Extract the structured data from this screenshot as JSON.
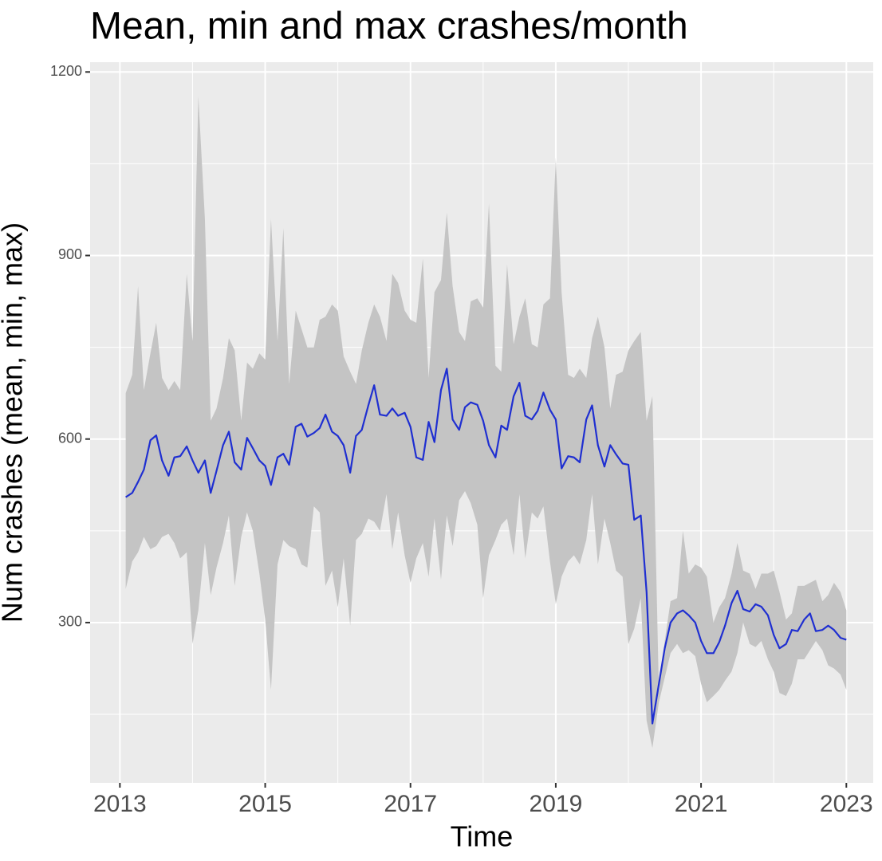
{
  "chart_data": {
    "type": "line",
    "title": "Mean, min and max crashes/month",
    "xlabel": "Time",
    "ylabel": "Num crashes (mean, min, max)",
    "xlim": [
      2012.59,
      2023.37
    ],
    "xticks": [
      2013,
      2015,
      2017,
      2019,
      2021,
      2023
    ],
    "xminor_ticks": [
      2014,
      2016,
      2018,
      2020,
      2022
    ],
    "ylim": [
      38,
      1216
    ],
    "yticks": [
      300,
      600,
      900,
      1200
    ],
    "yminor_ticks": [
      150,
      450,
      750,
      1050
    ],
    "grid": true,
    "x": [
      2013.08,
      2013.17,
      2013.25,
      2013.33,
      2013.42,
      2013.5,
      2013.58,
      2013.67,
      2013.75,
      2013.83,
      2013.92,
      2014.0,
      2014.08,
      2014.17,
      2014.25,
      2014.33,
      2014.42,
      2014.5,
      2014.58,
      2014.67,
      2014.75,
      2014.83,
      2014.92,
      2015.0,
      2015.08,
      2015.17,
      2015.25,
      2015.33,
      2015.42,
      2015.5,
      2015.58,
      2015.67,
      2015.75,
      2015.83,
      2015.92,
      2016.0,
      2016.08,
      2016.17,
      2016.25,
      2016.33,
      2016.42,
      2016.5,
      2016.58,
      2016.67,
      2016.75,
      2016.83,
      2016.92,
      2017.0,
      2017.08,
      2017.17,
      2017.25,
      2017.33,
      2017.42,
      2017.5,
      2017.58,
      2017.67,
      2017.75,
      2017.83,
      2017.92,
      2018.0,
      2018.08,
      2018.17,
      2018.25,
      2018.33,
      2018.42,
      2018.5,
      2018.58,
      2018.67,
      2018.75,
      2018.83,
      2018.92,
      2019.0,
      2019.08,
      2019.17,
      2019.25,
      2019.33,
      2019.42,
      2019.5,
      2019.58,
      2019.67,
      2019.75,
      2019.83,
      2019.92,
      2020.0,
      2020.08,
      2020.17,
      2020.25,
      2020.33,
      2020.42,
      2020.5,
      2020.58,
      2020.67,
      2020.75,
      2020.83,
      2020.92,
      2021.0,
      2021.08,
      2021.17,
      2021.25,
      2021.33,
      2021.42,
      2021.5,
      2021.58,
      2021.67,
      2021.75,
      2021.83,
      2021.92,
      2022.0,
      2022.08,
      2022.17,
      2022.25,
      2022.33,
      2022.42,
      2022.5,
      2022.58,
      2022.67,
      2022.75,
      2022.83,
      2022.92,
      2023.0
    ],
    "line": {
      "color": "#1f2fd1",
      "values": [
        505,
        512,
        530,
        550,
        598,
        606,
        565,
        540,
        570,
        572,
        588,
        565,
        545,
        565,
        512,
        548,
        590,
        612,
        562,
        550,
        602,
        585,
        565,
        556,
        525,
        570,
        576,
        558,
        620,
        625,
        604,
        610,
        618,
        640,
        612,
        605,
        590,
        545,
        605,
        615,
        655,
        688,
        640,
        638,
        650,
        638,
        643,
        620,
        570,
        566,
        628,
        595,
        680,
        715,
        632,
        615,
        652,
        660,
        656,
        630,
        590,
        570,
        622,
        615,
        670,
        692,
        638,
        632,
        646,
        676,
        648,
        632,
        552,
        572,
        570,
        562,
        632,
        655,
        590,
        555,
        590,
        575,
        560,
        558,
        468,
        475,
        350,
        135,
        200,
        258,
        300,
        315,
        320,
        312,
        300,
        270,
        250,
        250,
        268,
        295,
        332,
        352,
        322,
        318,
        330,
        326,
        312,
        280,
        258,
        265,
        288,
        286,
        305,
        315,
        286,
        288,
        295,
        288,
        275,
        272
      ]
    },
    "ribbon": {
      "color": "#c4c4c4",
      "min": [
        355,
        400,
        415,
        440,
        420,
        425,
        440,
        445,
        430,
        405,
        415,
        265,
        320,
        430,
        345,
        390,
        430,
        475,
        360,
        440,
        480,
        450,
        380,
        305,
        190,
        395,
        435,
        425,
        420,
        395,
        390,
        490,
        480,
        360,
        385,
        325,
        405,
        295,
        435,
        445,
        470,
        465,
        450,
        510,
        420,
        480,
        410,
        365,
        405,
        430,
        375,
        470,
        370,
        475,
        425,
        500,
        515,
        495,
        460,
        340,
        410,
        435,
        460,
        470,
        410,
        510,
        405,
        480,
        470,
        490,
        400,
        330,
        375,
        400,
        410,
        395,
        435,
        510,
        395,
        470,
        430,
        385,
        375,
        265,
        290,
        340,
        140,
        95,
        170,
        210,
        250,
        265,
        250,
        255,
        245,
        200,
        170,
        180,
        190,
        205,
        220,
        250,
        300,
        265,
        260,
        270,
        240,
        220,
        185,
        180,
        200,
        240,
        240,
        255,
        270,
        255,
        230,
        225,
        215,
        190
      ],
      "max": [
        675,
        705,
        850,
        680,
        740,
        790,
        700,
        680,
        695,
        680,
        870,
        760,
        1160,
        960,
        630,
        650,
        700,
        765,
        745,
        630,
        725,
        715,
        740,
        730,
        960,
        760,
        945,
        690,
        810,
        780,
        750,
        750,
        795,
        800,
        820,
        810,
        735,
        710,
        690,
        745,
        790,
        820,
        800,
        760,
        870,
        855,
        810,
        795,
        790,
        895,
        700,
        840,
        860,
        970,
        850,
        775,
        760,
        825,
        830,
        815,
        985,
        720,
        710,
        885,
        755,
        800,
        830,
        755,
        750,
        820,
        830,
        1060,
        840,
        705,
        700,
        715,
        700,
        765,
        800,
        750,
        650,
        705,
        710,
        745,
        760,
        775,
        630,
        670,
        185,
        270,
        335,
        340,
        450,
        380,
        395,
        390,
        375,
        300,
        325,
        340,
        380,
        430,
        385,
        380,
        355,
        380,
        380,
        385,
        350,
        305,
        315,
        360,
        360,
        365,
        370,
        335,
        345,
        365,
        350,
        320
      ]
    }
  }
}
